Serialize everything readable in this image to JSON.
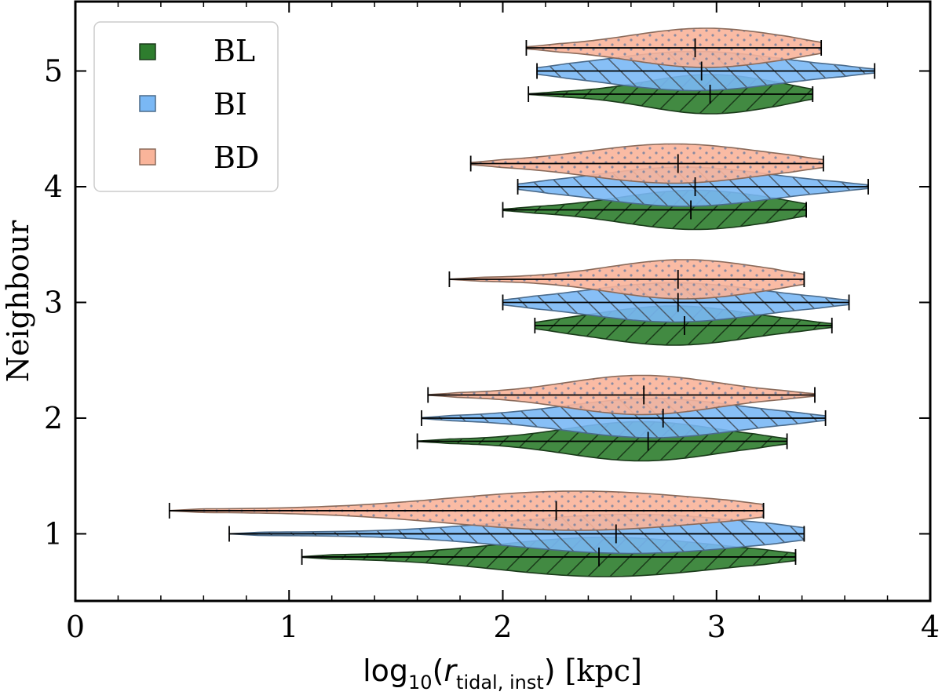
{
  "chart_data": {
    "type": "violin",
    "orientation": "horizontal",
    "title": "",
    "xlabel_main": "log",
    "xlabel_sub_base": "10",
    "xlabel_var": "r",
    "xlabel_var_sub": "tidal, inst",
    "xlabel_unit": "[kpc]",
    "ylabel": "Neighbour",
    "xlim": [
      0,
      4
    ],
    "ylim": [
      0.42,
      5.6
    ],
    "xticks": [
      0,
      1,
      2,
      3,
      4
    ],
    "xtick_labels": [
      "0",
      "1",
      "2",
      "3",
      "4"
    ],
    "yticks": [
      1,
      2,
      3,
      4,
      5
    ],
    "ytick_labels": [
      "1",
      "2",
      "3",
      "4",
      "5"
    ],
    "legend_position": "top-left",
    "series": [
      {
        "name": "BL",
        "color": "#2e7d2e",
        "edge": "#1a3a1a",
        "hatch": "diagonal",
        "offset": -0.2,
        "groups": [
          {
            "neighbour": 1,
            "min": 1.06,
            "max": 3.37,
            "median": 2.45,
            "peak": 2.48,
            "spread": 0.5
          },
          {
            "neighbour": 2,
            "min": 1.6,
            "max": 3.33,
            "median": 2.68,
            "peak": 2.65,
            "spread": 0.35
          },
          {
            "neighbour": 3,
            "min": 2.15,
            "max": 3.54,
            "median": 2.85,
            "peak": 2.8,
            "spread": 0.35
          },
          {
            "neighbour": 4,
            "min": 2.0,
            "max": 3.42,
            "median": 2.88,
            "peak": 2.9,
            "spread": 0.35
          },
          {
            "neighbour": 5,
            "min": 2.12,
            "max": 3.45,
            "median": 2.97,
            "peak": 2.97,
            "spread": 0.3
          }
        ]
      },
      {
        "name": "BI",
        "color": "#7ab8f5",
        "edge": "#4a6a8a",
        "hatch": "backslash",
        "offset": 0.0,
        "groups": [
          {
            "neighbour": 1,
            "min": 0.72,
            "max": 3.41,
            "median": 2.53,
            "peak": 2.6,
            "spread": 0.55
          },
          {
            "neighbour": 2,
            "min": 1.62,
            "max": 3.51,
            "median": 2.75,
            "peak": 2.7,
            "spread": 0.4
          },
          {
            "neighbour": 3,
            "min": 2.0,
            "max": 3.62,
            "median": 2.82,
            "peak": 2.8,
            "spread": 0.4
          },
          {
            "neighbour": 4,
            "min": 2.07,
            "max": 3.71,
            "median": 2.9,
            "peak": 2.85,
            "spread": 0.4
          },
          {
            "neighbour": 5,
            "min": 2.16,
            "max": 3.74,
            "median": 2.93,
            "peak": 2.9,
            "spread": 0.4
          }
        ]
      },
      {
        "name": "BD",
        "color": "#f9b49a",
        "edge": "#8a6a5a",
        "hatch": "dots",
        "offset": 0.2,
        "groups": [
          {
            "neighbour": 1,
            "min": 0.44,
            "max": 3.22,
            "median": 2.25,
            "peak": 2.35,
            "spread": 0.6
          },
          {
            "neighbour": 2,
            "min": 1.65,
            "max": 3.46,
            "median": 2.66,
            "peak": 2.65,
            "spread": 0.35
          },
          {
            "neighbour": 3,
            "min": 1.75,
            "max": 3.41,
            "median": 2.82,
            "peak": 2.85,
            "spread": 0.35
          },
          {
            "neighbour": 4,
            "min": 1.85,
            "max": 3.5,
            "median": 2.82,
            "peak": 2.8,
            "spread": 0.4
          },
          {
            "neighbour": 5,
            "min": 2.11,
            "max": 3.49,
            "median": 2.9,
            "peak": 2.95,
            "spread": 0.35
          }
        ]
      }
    ]
  }
}
